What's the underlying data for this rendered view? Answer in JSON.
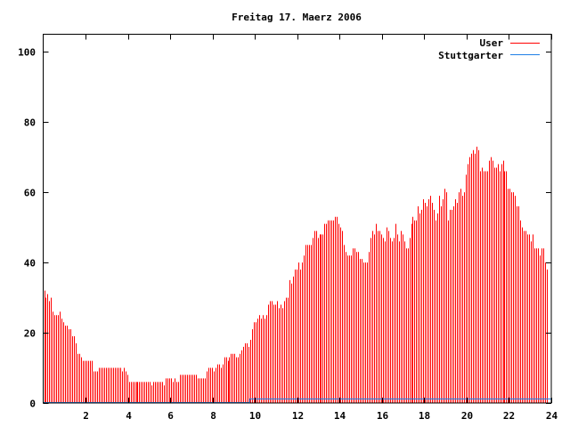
{
  "chart_data": {
    "type": "bar",
    "title": "Freitag 17. Maerz 2006",
    "xlabel": "",
    "ylabel": "",
    "xlim": [
      0,
      24
    ],
    "ylim": [
      0,
      105
    ],
    "x_step_hours": 0.08333,
    "grid": false,
    "legend_position": "top-right",
    "x_ticks": [
      "2",
      "4",
      "6",
      "8",
      "10",
      "12",
      "14",
      "16",
      "18",
      "20",
      "22",
      "24"
    ],
    "x_tick_values": [
      2,
      4,
      6,
      8,
      10,
      12,
      14,
      16,
      18,
      20,
      22,
      24
    ],
    "y_ticks": [
      "0",
      "20",
      "40",
      "60",
      "80",
      "100"
    ],
    "y_tick_values": [
      0,
      20,
      40,
      60,
      80,
      100
    ],
    "series": [
      {
        "name": "User",
        "style": "impulses",
        "color": "#ff0000",
        "values": [
          32,
          30,
          31,
          29,
          30,
          26,
          25,
          25,
          25,
          26,
          24,
          23,
          22,
          22,
          21,
          21,
          19,
          19,
          17,
          14,
          14,
          13,
          12,
          12,
          12,
          12,
          12,
          12,
          9,
          9,
          9,
          10,
          10,
          10,
          10,
          10,
          10,
          10,
          10,
          10,
          10,
          10,
          10,
          10,
          9,
          10,
          9,
          8,
          6,
          6,
          6,
          6,
          6,
          6,
          6,
          6,
          6,
          6,
          6,
          6,
          6,
          5,
          6,
          6,
          6,
          6,
          6,
          6,
          5,
          7,
          7,
          7,
          7,
          6,
          7,
          6,
          6,
          8,
          8,
          8,
          8,
          8,
          8,
          8,
          8,
          8,
          8,
          7,
          7,
          7,
          7,
          7,
          9,
          10,
          10,
          10,
          9,
          10,
          11,
          11,
          10,
          11,
          13,
          13,
          12,
          13,
          14,
          14,
          14,
          13,
          13,
          14,
          15,
          16,
          17,
          17,
          16,
          18,
          21,
          23,
          23,
          24,
          25,
          24,
          25,
          24,
          25,
          28,
          29,
          29,
          28,
          28,
          29,
          27,
          28,
          27,
          29,
          30,
          30,
          35,
          34,
          36,
          38,
          38,
          40,
          38,
          40,
          42,
          45,
          45,
          45,
          45,
          47,
          49,
          49,
          47,
          48,
          48,
          48,
          51,
          51,
          52,
          52,
          52,
          52,
          53,
          53,
          51,
          50,
          49,
          45,
          43,
          42,
          42,
          42,
          44,
          44,
          43,
          43,
          41,
          41,
          40,
          40,
          40,
          43,
          47,
          49,
          48,
          51,
          49,
          49,
          48,
          47,
          46,
          50,
          49,
          47,
          46,
          47,
          51,
          48,
          46,
          49,
          48,
          46,
          44,
          44,
          47,
          51,
          53,
          52,
          52,
          56,
          54,
          55,
          58,
          57,
          56,
          58,
          59,
          57,
          55,
          52,
          54,
          59,
          56,
          58,
          61,
          60,
          52,
          55,
          55,
          56,
          58,
          57,
          60,
          61,
          59,
          60,
          65,
          68,
          70,
          71,
          72,
          71,
          73,
          72,
          66,
          67,
          66,
          66,
          66,
          69,
          70,
          69,
          67,
          67,
          68,
          66,
          68,
          69,
          66,
          66,
          61,
          61,
          60,
          60,
          59,
          56,
          56,
          52,
          50,
          49,
          49,
          48,
          48,
          46,
          48,
          44,
          44,
          44,
          42,
          44,
          44,
          40,
          38
        ]
      },
      {
        "name": "Stuttgarter",
        "style": "steps",
        "color": "#1f7fe6",
        "points": [
          [
            0,
            0
          ],
          [
            9.75,
            0
          ],
          [
            9.75,
            1
          ],
          [
            24,
            1
          ]
        ]
      }
    ]
  }
}
